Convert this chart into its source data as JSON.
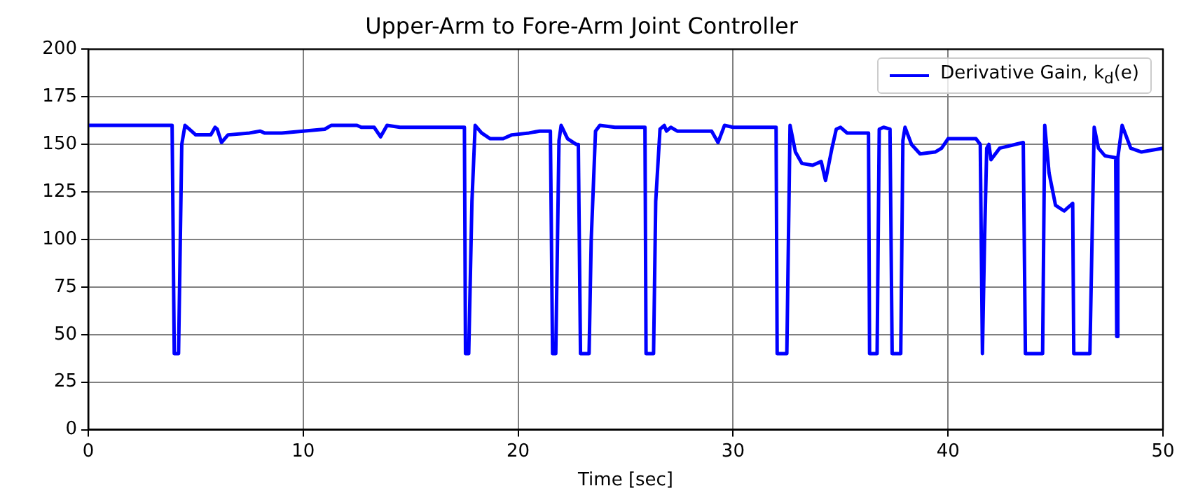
{
  "chart_data": {
    "type": "line",
    "title": "Upper-Arm to Fore-Arm Joint Controller",
    "xlabel": "Time [sec]",
    "xlim": [
      0,
      50
    ],
    "xticks": [
      0,
      10,
      20,
      30,
      40,
      50
    ],
    "ylim": [
      0,
      200
    ],
    "yticks": [
      0,
      25,
      50,
      75,
      100,
      125,
      150,
      175,
      200
    ],
    "grid": true,
    "legend": "top right",
    "marker": "none",
    "line_style": "solid",
    "series": [
      {
        "name": "Derivative Gain, k$_{d}$(e)",
        "color": "#0000ff",
        "x": [
          0,
          3.9,
          4.0,
          4.2,
          4.35,
          4.5,
          4.7,
          5.0,
          5.7,
          5.9,
          6.0,
          6.2,
          6.5,
          7.5,
          8.0,
          8.2,
          8.5,
          9,
          10,
          11,
          11.3,
          12.5,
          12.7,
          13.3,
          13.6,
          13.9,
          14.5,
          15,
          17.5,
          17.55,
          17.7,
          17.85,
          18.0,
          18.3,
          18.7,
          19.3,
          19.7,
          20.5,
          21.0,
          21.5,
          21.6,
          21.75,
          21.9,
          22.0,
          22.3,
          22.7,
          22.8,
          22.9,
          23.3,
          23.4,
          23.6,
          23.8,
          24.5,
          25.9,
          25.95,
          26.3,
          26.4,
          26.6,
          26.8,
          26.9,
          27.1,
          27.4,
          28,
          29,
          29.3,
          29.6,
          30,
          32.0,
          32.05,
          32.5,
          32.65,
          32.9,
          33.2,
          33.7,
          34.1,
          34.3,
          34.6,
          34.8,
          35.0,
          35.3,
          36.3,
          36.35,
          36.7,
          36.8,
          37.0,
          37.3,
          37.4,
          37.8,
          37.9,
          38.0,
          38.3,
          38.7,
          39.4,
          39.7,
          40.0,
          41.3,
          41.5,
          41.6,
          41.7,
          41.8,
          41.9,
          42.0,
          42.4,
          43.5,
          43.6,
          44.4,
          44.5,
          44.7,
          45.0,
          45.4,
          45.8,
          45.85,
          46.6,
          46.8,
          47.0,
          47.3,
          47.8,
          47.85,
          47.9,
          48.1,
          48.5,
          49,
          50
        ],
        "values": [
          160,
          160,
          40,
          40,
          150,
          160,
          158,
          155,
          155,
          159,
          158,
          151,
          155,
          156,
          157,
          156,
          156,
          156,
          157,
          158,
          160,
          160,
          159,
          159,
          154,
          160,
          159,
          159,
          159,
          40,
          40,
          120,
          160,
          156,
          153,
          153,
          155,
          156,
          157,
          157,
          40,
          40,
          152,
          160,
          153,
          150,
          150,
          40,
          40,
          100,
          157,
          160,
          159,
          159,
          40,
          40,
          120,
          158,
          160,
          157,
          159,
          157,
          157,
          157,
          151,
          160,
          159,
          159,
          40,
          40,
          160,
          146,
          140,
          139,
          141,
          131,
          148,
          158,
          159,
          156,
          156,
          40,
          40,
          158,
          159,
          158,
          40,
          40,
          152,
          159,
          150,
          145,
          146,
          148,
          153,
          153,
          150,
          40,
          100,
          148,
          150,
          142,
          148,
          151,
          40,
          40,
          160,
          135,
          118,
          115,
          119,
          40,
          40,
          159,
          148,
          144,
          143,
          49,
          143,
          160,
          148,
          146,
          148
        ]
      }
    ]
  }
}
